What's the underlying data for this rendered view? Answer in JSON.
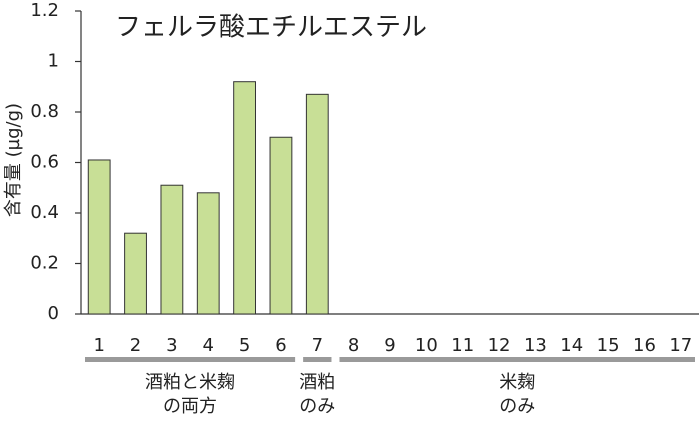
{
  "chart_data": {
    "type": "bar",
    "title": "フェルラ酸エチルエステル",
    "y_label": "含有量 (µg/g)",
    "categories": [
      "1",
      "2",
      "3",
      "4",
      "5",
      "6",
      "7",
      "8",
      "9",
      "10",
      "11",
      "12",
      "13",
      "14",
      "15",
      "16",
      "17"
    ],
    "values": [
      0.61,
      0.32,
      0.51,
      0.48,
      0.92,
      0.7,
      0.87,
      0,
      0,
      0,
      0,
      0,
      0,
      0,
      0,
      0,
      0
    ],
    "color": "#c8df96",
    "ylim": [
      0,
      1.2
    ],
    "yticks": [
      0,
      0.2,
      0.4,
      0.6,
      0.8,
      1,
      1.2
    ],
    "groups": [
      {
        "lines": [
          "酒粕と米麹",
          "の両方"
        ],
        "categories": [
          "1",
          "2",
          "3",
          "4",
          "5",
          "6"
        ]
      },
      {
        "lines": [
          "酒粕",
          "のみ"
        ],
        "categories": [
          "7"
        ]
      },
      {
        "lines": [
          "米麹",
          "のみ"
        ],
        "categories": [
          "8",
          "9",
          "10",
          "11",
          "12",
          "13",
          "14",
          "15",
          "16",
          "17"
        ]
      }
    ]
  }
}
